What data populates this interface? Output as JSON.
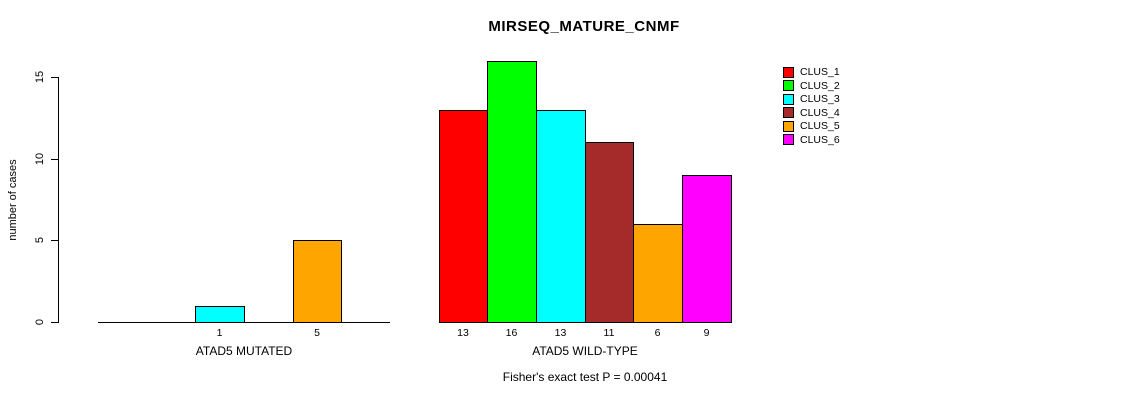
{
  "chart_data": {
    "type": "bar",
    "title": "MIRSEQ_MATURE_CNMF",
    "xlabel": "",
    "ylabel": "number of cases",
    "ylim": [
      0,
      15
    ],
    "yticks": [
      0,
      5,
      10,
      15
    ],
    "grid": false,
    "legend_position": "top-right",
    "legend": [
      {
        "label": "CLUS_1",
        "color": "#FF0000"
      },
      {
        "label": "CLUS_2",
        "color": "#00FF00"
      },
      {
        "label": "CLUS_3",
        "color": "#00FFFF"
      },
      {
        "label": "CLUS_4",
        "color": "#A52A2A"
      },
      {
        "label": "CLUS_5",
        "color": "#FFA500"
      },
      {
        "label": "CLUS_6",
        "color": "#FF00FF"
      }
    ],
    "groups": [
      {
        "label": "ATAD5 MUTATED",
        "values": [
          0,
          0,
          1,
          0,
          5,
          0
        ]
      },
      {
        "label": "ATAD5 WILD-TYPE",
        "values": [
          13,
          16,
          13,
          11,
          6,
          9
        ]
      }
    ],
    "annotation": "Fisher's exact test P = 0.00041",
    "colors": {
      "axis": "#000000",
      "background": "#ffffff"
    }
  }
}
